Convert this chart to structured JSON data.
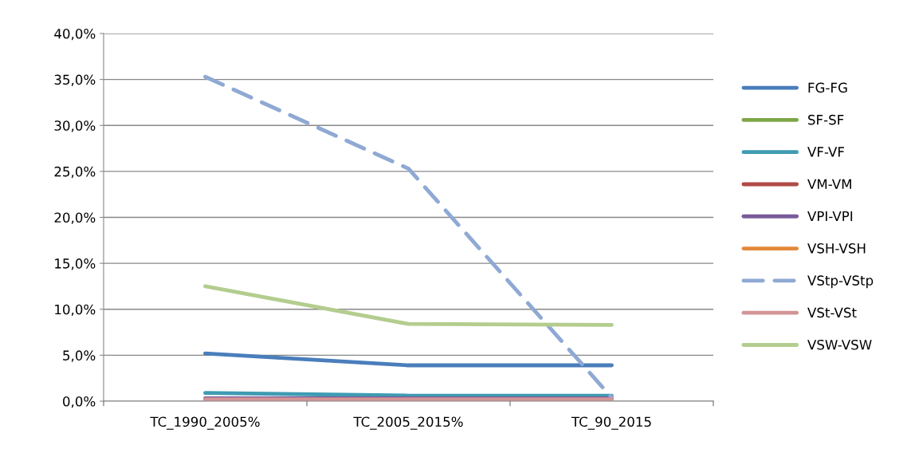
{
  "chart_data": {
    "type": "line",
    "categories": [
      "TC_1990_2005%",
      "TC_2005_2015%",
      "TC_90_2015"
    ],
    "series": [
      {
        "name": "FG-FG",
        "color": "#4a7ebb",
        "values": [
          5.2,
          3.9,
          3.9
        ]
      },
      {
        "name": "SF-SF",
        "color": "#7da647",
        "values": [
          null,
          null,
          null
        ]
      },
      {
        "name": "VF-VF",
        "color": "#3f9bb2",
        "values": [
          0.9,
          0.6,
          0.6
        ]
      },
      {
        "name": "VM-VM",
        "color": "#b04a47",
        "values": [
          null,
          null,
          null
        ]
      },
      {
        "name": "VPI-VPI",
        "color": "#7a5b9a",
        "values": [
          0.3,
          0.3,
          0.3
        ]
      },
      {
        "name": "VSH-VSH",
        "color": "#e3893b",
        "values": [
          null,
          null,
          null
        ]
      },
      {
        "name": "VStp-VStp",
        "color": "#8fa9d4",
        "values": [
          35.3,
          25.3,
          0.4
        ],
        "line_style": "dashed"
      },
      {
        "name": "VSt-VSt",
        "color": "#d39495",
        "values": [
          0.2,
          0.2,
          0.2
        ]
      },
      {
        "name": "VSW-VSW",
        "color": "#b3cd8e",
        "values": [
          12.5,
          8.4,
          8.3
        ]
      }
    ],
    "ylim": [
      0,
      40
    ],
    "yticks": [
      {
        "value": 0,
        "label": "0,0%"
      },
      {
        "value": 5,
        "label": "5,0%"
      },
      {
        "value": 10,
        "label": "10,0%"
      },
      {
        "value": 15,
        "label": "15,0%"
      },
      {
        "value": 20,
        "label": "20,0%"
      },
      {
        "value": 25,
        "label": "25,0%"
      },
      {
        "value": 30,
        "label": "30,0%"
      },
      {
        "value": 35,
        "label": "35,0%"
      },
      {
        "value": 40,
        "label": "40,0%"
      }
    ],
    "grid": "y",
    "legend": "right",
    "marker": "none",
    "line_style": "solid"
  }
}
